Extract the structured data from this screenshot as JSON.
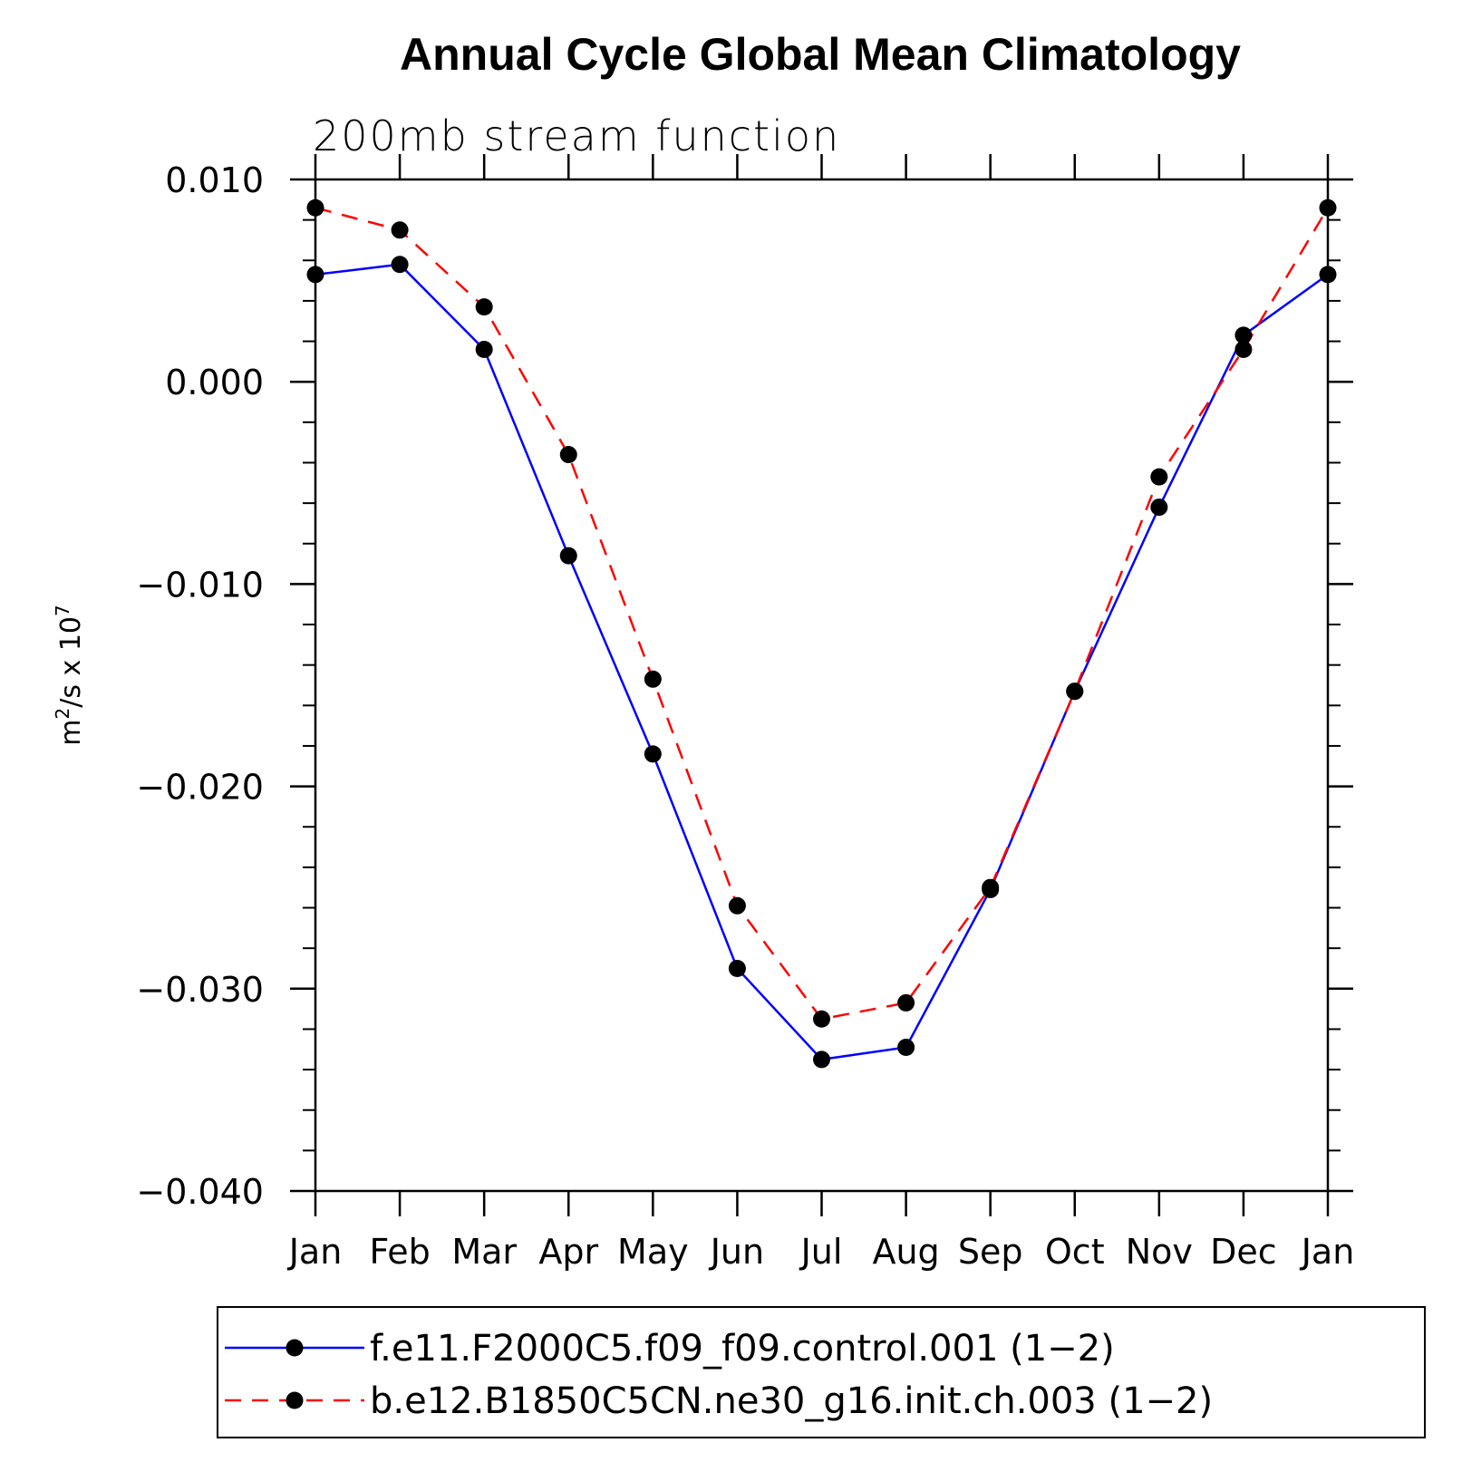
{
  "chart_data": {
    "type": "line",
    "title": "Annual Cycle Global Mean Climatology",
    "subtitle": "200mb stream function",
    "ylabel": "m²/s x 10⁷",
    "ylabel_parts": {
      "base": "m",
      "exp": "2",
      "rest": "/s x 10",
      "exp2": "7"
    },
    "categories": [
      "Jan",
      "Feb",
      "Mar",
      "Apr",
      "May",
      "Jun",
      "Jul",
      "Aug",
      "Sep",
      "Oct",
      "Nov",
      "Dec",
      "Jan"
    ],
    "ylim": [
      -0.04,
      0.01
    ],
    "yticks": [
      0.01,
      0.0,
      -0.01,
      -0.02,
      -0.03,
      -0.04
    ],
    "ytick_labels": [
      "0.010",
      "0.000",
      "−0.010",
      "−0.020",
      "−0.030",
      "−0.040"
    ],
    "series": [
      {
        "name": "f.e11.F2000C5.f09_f09.control.001 (1−2)",
        "color": "#0000ff",
        "dash": "solid",
        "values": [
          0.0053,
          0.0058,
          0.0016,
          -0.0086,
          -0.0184,
          -0.029,
          -0.0335,
          -0.0329,
          -0.0251,
          -0.0153,
          -0.0062,
          0.0023,
          0.0053
        ]
      },
      {
        "name": "b.e12.B1850C5CN.ne30_g16.init.ch.003 (1−2)",
        "color": "#ff0000",
        "dash": "dashed",
        "values": [
          0.0086,
          0.0075,
          0.0037,
          -0.0036,
          -0.0147,
          -0.0259,
          -0.0315,
          -0.0307,
          -0.025,
          -0.0153,
          -0.0047,
          0.0016,
          0.0086
        ]
      }
    ],
    "grid": false,
    "legend_position": "bottom"
  }
}
